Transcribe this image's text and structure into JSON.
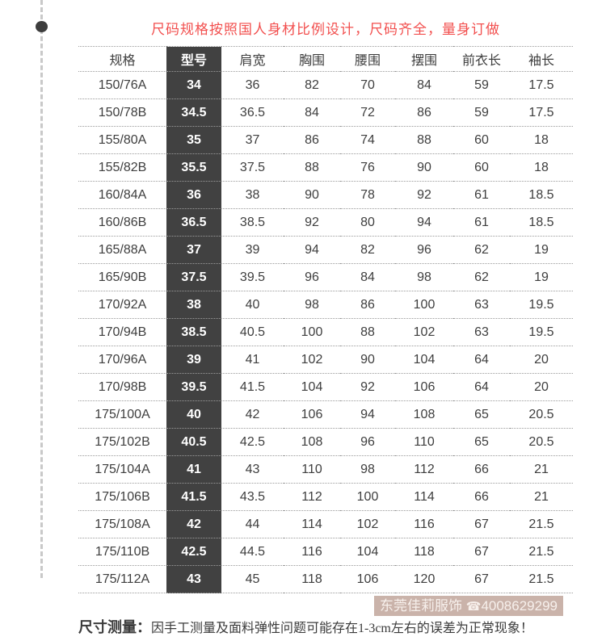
{
  "title": "尺码规格按照国人身材比例设计，尺码齐全，量身订做",
  "colors": {
    "title_red": "#f24f4e",
    "model_column_bg": "#414141",
    "model_column_text": "#ffffff",
    "table_text": "#3e3e3e",
    "dotted_border": "#9b9b9b",
    "watermark_bg": "#cab3aa",
    "watermark_text": "#f7f0ec",
    "rail_gray": "#c9c9c9",
    "rail_dot": "#3d3d3d"
  },
  "table": {
    "headers": [
      "规格",
      "型号",
      "肩宽",
      "胸围",
      "腰围",
      "摆围",
      "前衣长",
      "袖长"
    ],
    "rows": [
      [
        "150/76A",
        "34",
        "36",
        "82",
        "70",
        "84",
        "59",
        "17.5"
      ],
      [
        "150/78B",
        "34.5",
        "36.5",
        "84",
        "72",
        "86",
        "59",
        "17.5"
      ],
      [
        "155/80A",
        "35",
        "37",
        "86",
        "74",
        "88",
        "60",
        "18"
      ],
      [
        "155/82B",
        "35.5",
        "37.5",
        "88",
        "76",
        "90",
        "60",
        "18"
      ],
      [
        "160/84A",
        "36",
        "38",
        "90",
        "78",
        "92",
        "61",
        "18.5"
      ],
      [
        "160/86B",
        "36.5",
        "38.5",
        "92",
        "80",
        "94",
        "61",
        "18.5"
      ],
      [
        "165/88A",
        "37",
        "39",
        "94",
        "82",
        "96",
        "62",
        "19"
      ],
      [
        "165/90B",
        "37.5",
        "39.5",
        "96",
        "84",
        "98",
        "62",
        "19"
      ],
      [
        "170/92A",
        "38",
        "40",
        "98",
        "86",
        "100",
        "63",
        "19.5"
      ],
      [
        "170/94B",
        "38.5",
        "40.5",
        "100",
        "88",
        "102",
        "63",
        "19.5"
      ],
      [
        "170/96A",
        "39",
        "41",
        "102",
        "90",
        "104",
        "64",
        "20"
      ],
      [
        "170/98B",
        "39.5",
        "41.5",
        "104",
        "92",
        "106",
        "64",
        "20"
      ],
      [
        "175/100A",
        "40",
        "42",
        "106",
        "94",
        "108",
        "65",
        "20.5"
      ],
      [
        "175/102B",
        "40.5",
        "42.5",
        "108",
        "96",
        "110",
        "65",
        "20.5"
      ],
      [
        "175/104A",
        "41",
        "43",
        "110",
        "98",
        "112",
        "66",
        "21"
      ],
      [
        "175/106B",
        "41.5",
        "43.5",
        "112",
        "100",
        "114",
        "66",
        "21"
      ],
      [
        "175/108A",
        "42",
        "44",
        "114",
        "102",
        "116",
        "67",
        "21.5"
      ],
      [
        "175/110B",
        "42.5",
        "44.5",
        "116",
        "104",
        "118",
        "67",
        "21.5"
      ],
      [
        "175/112A",
        "43",
        "45",
        "118",
        "106",
        "120",
        "67",
        "21.5"
      ]
    ]
  },
  "watermark": {
    "brand": "东莞佳莉服饰",
    "phone_icon": "☎",
    "phone": "4008629299"
  },
  "footnote": {
    "label": "尺寸测量：",
    "text": "因手工测量及面料弹性问题可能存在1-3cm左右的误差为正常现象！"
  }
}
